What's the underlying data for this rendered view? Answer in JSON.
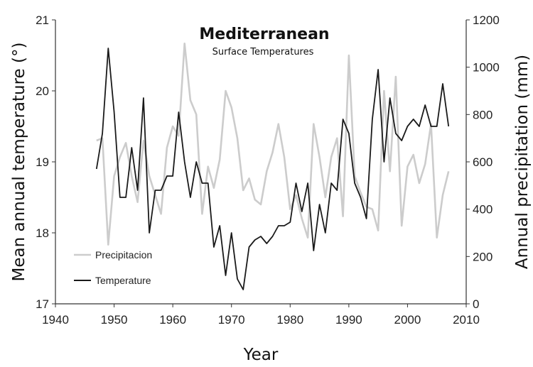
{
  "chart_data": {
    "type": "line",
    "title": "Mediterranean",
    "subtitle": "Surface Temperatures",
    "xlabel": "Year",
    "ylabel_left": "Mean annual temperature (°)",
    "ylabel_right": "Annual precipitation (mm)",
    "xlim": [
      1940,
      2010
    ],
    "ylim_left": [
      17,
      21
    ],
    "ylim_right": [
      0,
      1200
    ],
    "x_ticks": [
      "1940",
      "1950",
      "1960",
      "1970",
      "1980",
      "1990",
      "2000",
      "2010"
    ],
    "y_ticks_left": [
      "17",
      "18",
      "19",
      "20",
      "21"
    ],
    "y_ticks_right": [
      "0",
      "200",
      "400",
      "600",
      "800",
      "1000",
      "1200"
    ],
    "grid": false,
    "legend_position": "bottom-left",
    "series": [
      {
        "name": "Precipitacion",
        "axis": "right",
        "color": "#cccccc",
        "x": [
          1947,
          1948,
          1949,
          1950,
          1951,
          1952,
          1953,
          1954,
          1955,
          1956,
          1957,
          1958,
          1959,
          1960,
          1961,
          1962,
          1963,
          1964,
          1965,
          1966,
          1967,
          1968,
          1969,
          1970,
          1971,
          1972,
          1973,
          1974,
          1975,
          1976,
          1977,
          1978,
          1979,
          1980,
          1981,
          1982,
          1983,
          1984,
          1985,
          1986,
          1987,
          1988,
          1989,
          1990,
          1991,
          1992,
          1993,
          1994,
          1995,
          1996,
          1997,
          1998,
          1999,
          2000,
          2001,
          2002,
          2003,
          2004,
          2005,
          2006,
          2007
        ],
        "values": [
          690,
          700,
          250,
          540,
          620,
          680,
          540,
          430,
          690,
          540,
          460,
          380,
          660,
          750,
          710,
          1100,
          860,
          800,
          380,
          580,
          490,
          610,
          900,
          830,
          700,
          480,
          530,
          440,
          420,
          560,
          640,
          760,
          620,
          400,
          460,
          360,
          280,
          760,
          620,
          450,
          620,
          700,
          370,
          1050,
          540,
          470,
          410,
          400,
          310,
          900,
          560,
          960,
          330,
          580,
          630,
          510,
          590,
          760,
          280,
          460,
          560
        ]
      },
      {
        "name": "Temperature",
        "axis": "left",
        "color": "#1a1a1a",
        "x": [
          1947,
          1948,
          1949,
          1950,
          1951,
          1952,
          1953,
          1954,
          1955,
          1956,
          1957,
          1958,
          1959,
          1960,
          1961,
          1962,
          1963,
          1964,
          1965,
          1966,
          1967,
          1968,
          1969,
          1970,
          1971,
          1972,
          1973,
          1974,
          1975,
          1976,
          1977,
          1978,
          1979,
          1980,
          1981,
          1982,
          1983,
          1984,
          1985,
          1986,
          1987,
          1988,
          1989,
          1990,
          1991,
          1992,
          1993,
          1994,
          1995,
          1996,
          1997,
          1998,
          1999,
          2000,
          2001,
          2002,
          2003,
          2004,
          2005,
          2006,
          2007
        ],
        "values": [
          18.9,
          19.4,
          20.6,
          19.7,
          18.5,
          18.5,
          19.2,
          18.6,
          19.9,
          18.0,
          18.6,
          18.6,
          18.8,
          18.8,
          19.7,
          19.0,
          18.5,
          19.0,
          18.7,
          18.7,
          17.8,
          18.1,
          17.4,
          18.0,
          17.35,
          17.2,
          17.8,
          17.9,
          17.95,
          17.85,
          17.95,
          18.1,
          18.1,
          18.15,
          18.7,
          18.3,
          18.7,
          17.75,
          18.4,
          18.0,
          18.7,
          18.6,
          19.6,
          19.4,
          18.7,
          18.5,
          18.2,
          19.6,
          20.3,
          19.0,
          19.9,
          19.4,
          19.3,
          19.5,
          19.6,
          19.5,
          19.8,
          19.5,
          19.5,
          20.1,
          19.5
        ]
      }
    ]
  }
}
